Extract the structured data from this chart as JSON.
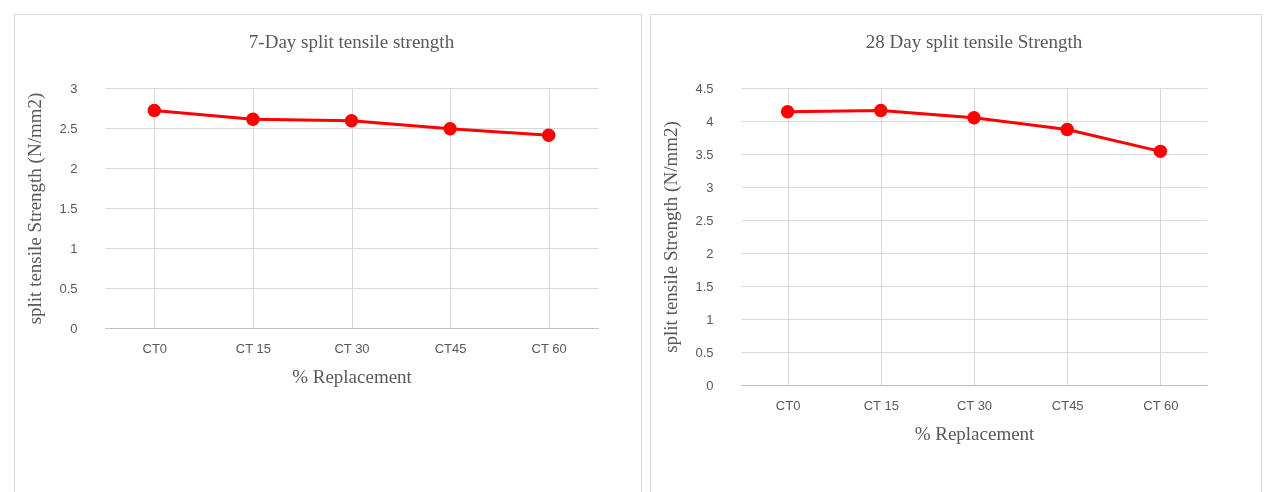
{
  "chart_data": [
    {
      "type": "line",
      "title": "7-Day split tensile strength",
      "xlabel": "% Replacement",
      "ylabel": "split tensile Strength (N/mm2)",
      "categories": [
        "CT0",
        "CT 15",
        "CT 30",
        "CT45",
        "CT 60"
      ],
      "series": [
        {
          "color": "#ff0000",
          "values": [
            2.72,
            2.61,
            2.59,
            2.49,
            2.41
          ]
        }
      ],
      "ylim": [
        0,
        3
      ],
      "yticks": [
        0,
        0.5,
        1,
        1.5,
        2,
        2.5,
        3
      ],
      "grid": true,
      "marker": "circle"
    },
    {
      "type": "line",
      "title": "28 Day split tensile Strength",
      "xlabel": "% Replacement",
      "ylabel": "split tensile Strength (N/mm2)",
      "categories": [
        "CT0",
        "CT 15",
        "CT 30",
        "CT45",
        "CT 60"
      ],
      "series": [
        {
          "color": "#ff0000",
          "values": [
            4.14,
            4.16,
            4.05,
            3.87,
            3.54
          ]
        }
      ],
      "ylim": [
        0,
        4.5
      ],
      "yticks": [
        0,
        0.5,
        1,
        1.5,
        2,
        2.5,
        3,
        3.5,
        4,
        4.5
      ],
      "grid": true,
      "marker": "circle"
    }
  ]
}
